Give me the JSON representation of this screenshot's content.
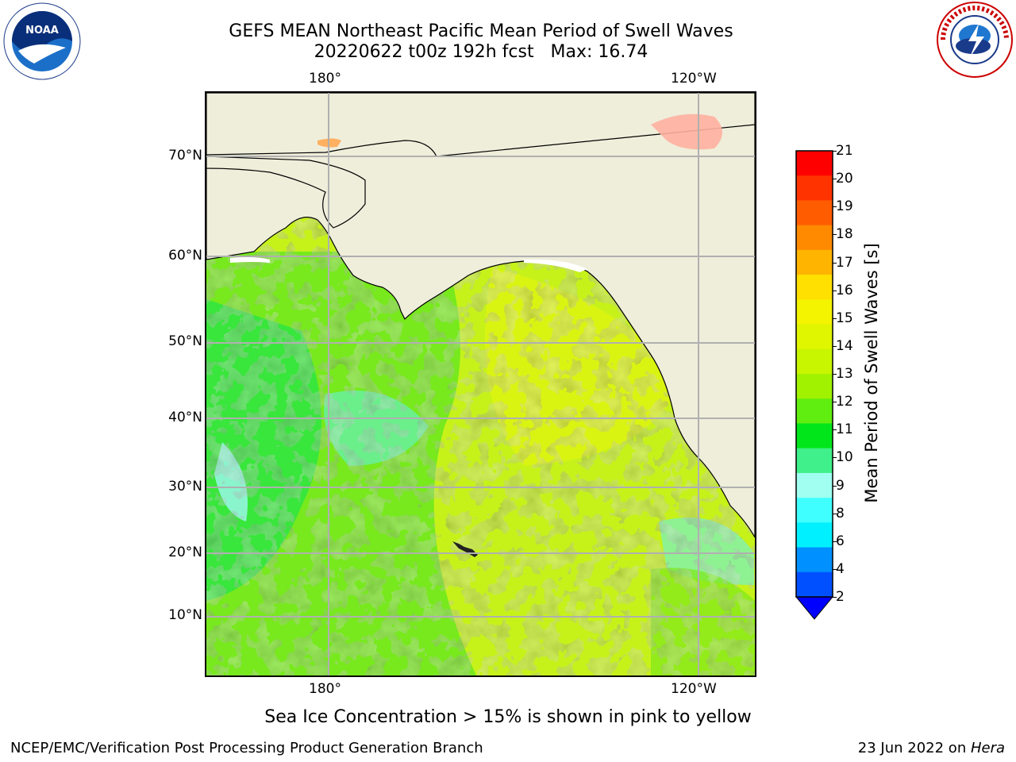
{
  "header": {
    "title_line1": "GEFS MEAN Northeast Pacific Mean Period of Swell Waves",
    "title_line2": "20220622 t00z 192h fcst   Max: 16.74"
  },
  "logos": {
    "left": "noaa-logo",
    "right": "nws-logo"
  },
  "map": {
    "lon_labels_top": [
      "180°",
      "120°W"
    ],
    "lon_labels_bottom": [
      "180°",
      "120°W"
    ],
    "lat_labels": [
      "70°N",
      "60°N",
      "50°N",
      "40°N",
      "30°N",
      "20°N",
      "10°N"
    ],
    "land_color": "#efeedb",
    "grid_color": "#b0b0b0"
  },
  "colorbar": {
    "label": "Mean Period of Swell Waves [s]",
    "ticks": [
      "21",
      "20",
      "19",
      "18",
      "17",
      "16",
      "15",
      "14",
      "13",
      "12",
      "11",
      "10",
      "9",
      "8",
      "6",
      "4",
      "2"
    ],
    "colors": [
      "#ff0000",
      "#ff3300",
      "#ff5c00",
      "#ff8a00",
      "#ffb400",
      "#ffe000",
      "#f4f400",
      "#e0f500",
      "#c8f500",
      "#a0f200",
      "#60ee10",
      "#00e61a",
      "#40f08a",
      "#a0fff0",
      "#40ffff",
      "#00f0ff",
      "#0090ff",
      "#0050ff"
    ],
    "extend_color": "#0000ff"
  },
  "note": "Sea Ice Concentration > 15% is shown in pink to yellow",
  "footer": {
    "left": "NCEP/EMC/Verification Post Processing Product Generation Branch",
    "date": "23 Jun 2022 on ",
    "host": "Hera"
  }
}
